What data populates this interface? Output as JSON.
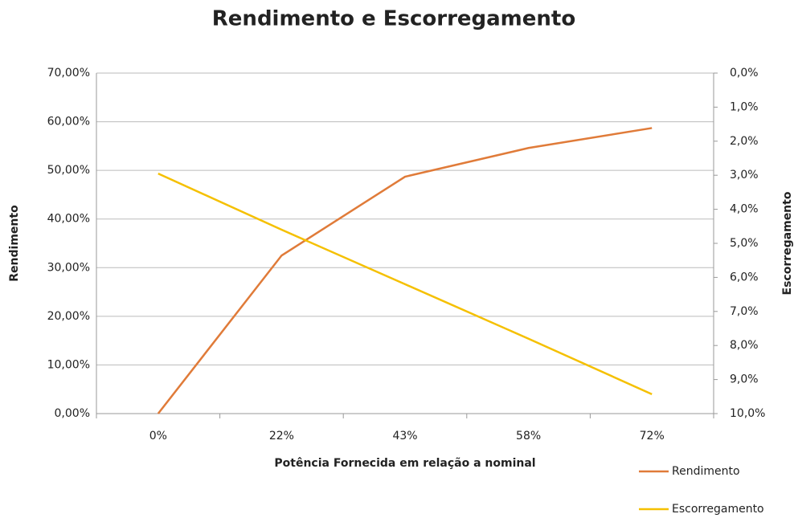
{
  "chart_data": {
    "type": "line",
    "title": "Rendimento e Escorregamento",
    "x_label": "Potência Fornecida em relação a nominal",
    "y_label": "Rendimento",
    "y2_label": "Escorregamento",
    "categories": [
      "0%",
      "22%",
      "43%",
      "58%",
      "72%"
    ],
    "series": [
      {
        "name": "Rendimento",
        "color": "#e07b39",
        "values": [
          0,
          32.5,
          48.7,
          54.6,
          58.7
        ]
      },
      {
        "name": "Escorregamento",
        "color": "#f5c000",
        "axis": "y2",
        "values": [
          2.95,
          4.6,
          6.2,
          7.8,
          9.43
        ]
      }
    ],
    "ylim": [
      0,
      70
    ],
    "yticks": [
      {
        "value": 0,
        "label": "0,00%"
      },
      {
        "value": 10,
        "label": "10,00%"
      },
      {
        "value": 20,
        "label": "20,00%"
      },
      {
        "value": 30,
        "label": "30,00%"
      },
      {
        "value": 40,
        "label": "40,00%"
      },
      {
        "value": 50,
        "label": "50,00%"
      },
      {
        "value": 60,
        "label": "60,00%"
      },
      {
        "value": 70,
        "label": "70,00%"
      }
    ],
    "y2lim": [
      10,
      0
    ],
    "y2ticks": [
      {
        "value": 0,
        "label": "0,0%"
      },
      {
        "value": 1,
        "label": "1,0%"
      },
      {
        "value": 2,
        "label": "2,0%"
      },
      {
        "value": 3,
        "label": "3,0%"
      },
      {
        "value": 4,
        "label": "4,0%"
      },
      {
        "value": 5,
        "label": "5,0%"
      },
      {
        "value": 6,
        "label": "6,0%"
      },
      {
        "value": 7,
        "label": "7,0%"
      },
      {
        "value": 8,
        "label": "8,0%"
      },
      {
        "value": 9,
        "label": "9,0%"
      },
      {
        "value": 10,
        "label": "10,0%"
      }
    ],
    "grid": true,
    "legend": "bottom-right"
  }
}
